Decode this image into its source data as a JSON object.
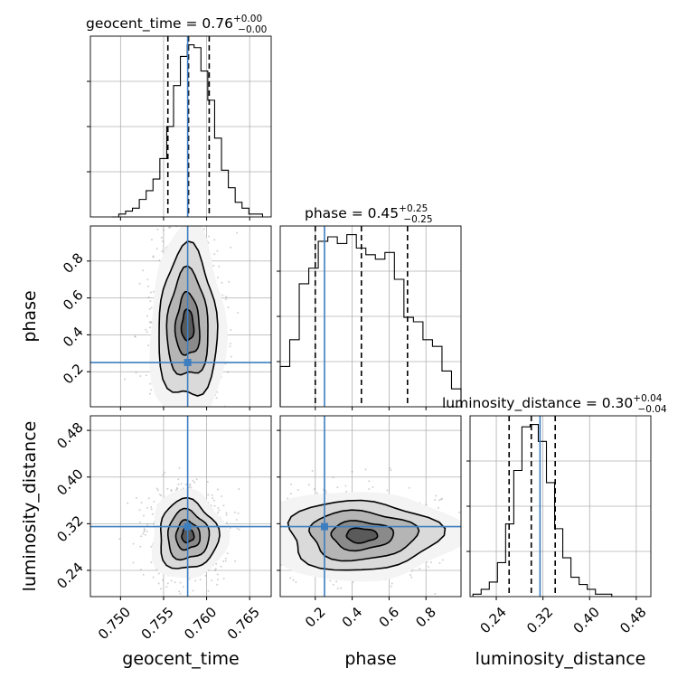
{
  "colors": {
    "truth": "#3d7ebf",
    "contour": "#000000",
    "density_dark": "#3a3a3a",
    "grid": "#b0b0b0",
    "points": "#7a7a7a"
  },
  "axis_labels": {
    "geocent_time": "geocent_time",
    "phase": "phase",
    "luminosity_distance": "luminosity_distance"
  },
  "titles": {
    "geocent_time": {
      "text": "geocent_time = 0.76",
      "sup": "+0.00",
      "sub": "−0.00"
    },
    "phase": {
      "text": "phase = 0.45",
      "sup": "+0.25",
      "sub": "−0.25"
    },
    "luminosity_distance": {
      "text": "luminosity_distance = 0.30",
      "sup": "+0.04",
      "sub": "−0.04"
    }
  },
  "chart_data": {
    "type": "corner",
    "parameters": [
      "geocent_time",
      "phase",
      "luminosity_distance"
    ],
    "ranges": {
      "geocent_time": [
        0.7465,
        0.7675
      ],
      "phase": [
        0.01,
        0.99
      ],
      "luminosity_distance": [
        0.195,
        0.505
      ]
    },
    "ticks": {
      "geocent_time": {
        "values": [
          0.75,
          0.755,
          0.76,
          0.765
        ],
        "labels": [
          "0.750",
          "0.755",
          "0.760",
          "0.765"
        ]
      },
      "phase": {
        "values": [
          0.2,
          0.4,
          0.6,
          0.8
        ],
        "labels": [
          "0.2",
          "0.4",
          "0.6",
          "0.8"
        ]
      },
      "luminosity_distance": {
        "values": [
          0.24,
          0.32,
          0.4,
          0.48
        ],
        "labels": [
          "0.24",
          "0.32",
          "0.40",
          "0.48"
        ]
      }
    },
    "truths": {
      "geocent_time": 0.7578,
      "phase": 0.25,
      "luminosity_distance": 0.315
    },
    "quantiles": {
      "geocent_time": [
        0.7555,
        0.7579,
        0.7603
      ],
      "phase": [
        0.2,
        0.45,
        0.7
      ],
      "luminosity_distance": [
        0.262,
        0.3,
        0.341
      ]
    },
    "histograms": {
      "geocent_time": [
        0,
        1,
        2,
        3,
        6,
        9,
        13,
        20,
        31,
        45,
        55,
        59,
        58,
        50,
        40,
        27,
        16,
        10,
        5,
        3,
        1,
        1
      ],
      "phase": [
        18,
        30,
        55,
        62,
        74,
        76,
        73,
        77,
        71,
        68,
        66,
        69,
        57,
        40,
        38,
        30,
        27,
        16,
        8
      ],
      "luminosity_distance": [
        1,
        3,
        6,
        14,
        30,
        52,
        70,
        71,
        64,
        47,
        28,
        16,
        8,
        5,
        3,
        1,
        1,
        0,
        0,
        0
      ]
    },
    "hist2d": [
      {
        "x": "geocent_time",
        "y": "phase",
        "center": [
          0.7578,
          0.45
        ],
        "sigma": [
          0.002,
          0.24
        ]
      },
      {
        "x": "geocent_time",
        "y": "luminosity_distance",
        "center": [
          0.7578,
          0.3
        ],
        "sigma": [
          0.002,
          0.035
        ]
      },
      {
        "x": "phase",
        "y": "luminosity_distance",
        "center": [
          0.45,
          0.3
        ],
        "sigma": [
          0.24,
          0.035
        ]
      }
    ],
    "grid": true
  }
}
